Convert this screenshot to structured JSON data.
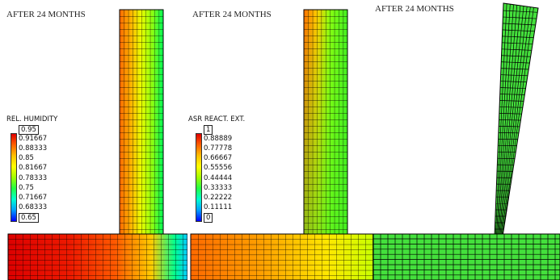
{
  "panels": [
    {
      "title": "AFTER 24 MONTHS",
      "legend": {
        "title": "REL. HUMIDITY",
        "ticks": [
          "0.95",
          "0.91667",
          "0.88333",
          "0.85",
          "0.81667",
          "0.78333",
          "0.75",
          "0.71667",
          "0.68333",
          "0.65"
        ],
        "boxed": [
          0,
          9
        ]
      }
    },
    {
      "title": "AFTER 24 MONTHS",
      "legend": {
        "title": "ASR REACT. EXT.",
        "ticks": [
          "1",
          "0.88889",
          "0.77778",
          "0.66667",
          "0.55556",
          "0.44444",
          "0.33333",
          "0.22222",
          "0.11111",
          "0"
        ],
        "boxed": [
          0,
          9
        ]
      }
    },
    {
      "title": "AFTER 24 MONTHS"
    }
  ],
  "colors": {
    "mesh_line": "#000000",
    "deformed_fill": "#44e03c",
    "colormap": [
      "#0000ff",
      "#00a0ff",
      "#00ffd0",
      "#22ff44",
      "#a0ff00",
      "#ffff00",
      "#ffc000",
      "#ff6000",
      "#e00000"
    ]
  }
}
